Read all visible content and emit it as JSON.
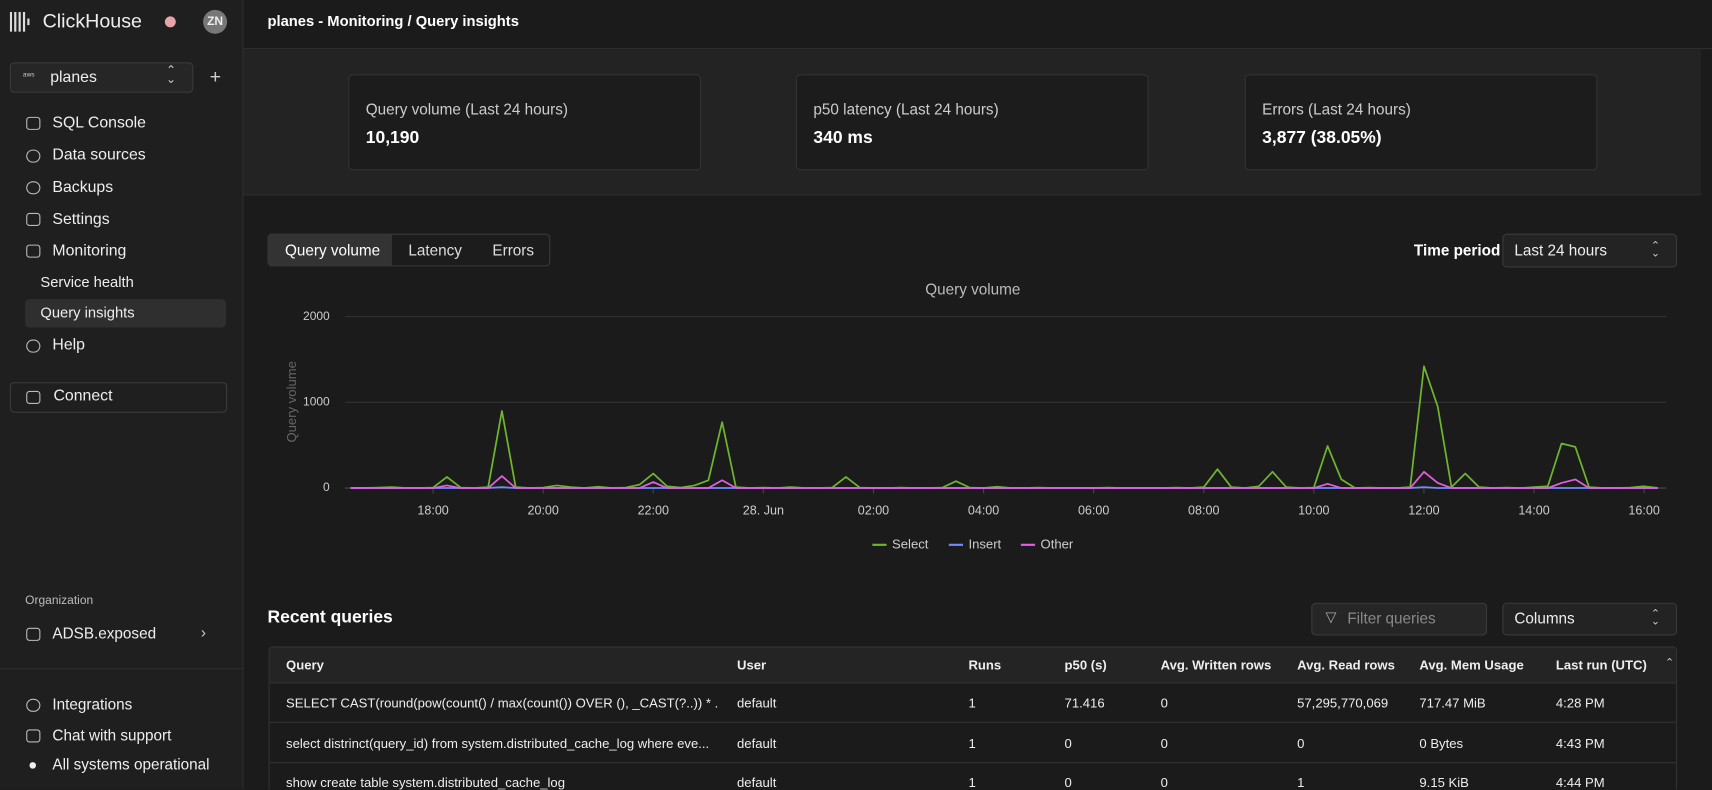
{
  "sidebar": {
    "brand": "ClickHouse",
    "avatar": "ZN",
    "service": "planes",
    "nav": [
      "SQL Console",
      "Data sources",
      "Backups",
      "Settings",
      "Monitoring"
    ],
    "subnav": [
      "Service health",
      "Query insights"
    ],
    "help": "Help",
    "connect": "Connect",
    "org_label": "Organization",
    "org": "ADSB.exposed",
    "footer": [
      "Integrations",
      "Chat with support",
      "All systems operational"
    ]
  },
  "header": {
    "title": "planes - Monitoring / Query insights"
  },
  "stats": [
    {
      "label": "Query volume (Last 24 hours)",
      "value": "10,190"
    },
    {
      "label": "p50 latency (Last 24 hours)",
      "value": "340 ms"
    },
    {
      "label": "Errors (Last 24 hours)",
      "value": "3,877 (38.05%)"
    }
  ],
  "tabs": [
    "Query volume",
    "Latency",
    "Errors"
  ],
  "time_period": {
    "label": "Time period",
    "value": "Last 24 hours"
  },
  "chart_data": {
    "type": "line",
    "title": "Query volume",
    "y_label": "Query volume",
    "x": [
      16.5,
      16.75,
      17,
      17.25,
      17.5,
      17.75,
      18,
      18.25,
      18.5,
      18.75,
      19,
      19.25,
      19.5,
      19.75,
      20,
      20.25,
      20.5,
      20.75,
      21,
      21.25,
      21.5,
      21.75,
      22,
      22.25,
      22.5,
      22.75,
      23,
      23.25,
      23.5,
      23.75,
      24,
      24.25,
      24.5,
      24.75,
      25,
      25.25,
      25.5,
      25.75,
      26,
      26.25,
      26.5,
      26.75,
      27,
      27.25,
      27.5,
      27.75,
      28,
      28.25,
      28.5,
      28.75,
      29,
      29.25,
      29.5,
      29.75,
      30,
      30.25,
      30.5,
      30.75,
      31,
      31.25,
      31.5,
      31.75,
      32,
      32.25,
      32.5,
      32.75,
      33,
      33.25,
      33.5,
      33.75,
      34,
      34.25,
      34.5,
      34.75,
      35,
      35.25,
      35.5,
      35.75,
      36,
      36.25,
      36.5,
      36.75,
      37,
      37.25,
      37.5,
      37.75,
      38,
      38.25,
      38.5,
      38.75,
      39,
      39.25,
      39.5,
      39.75,
      40,
      40.25
    ],
    "series": [
      {
        "name": "Select",
        "color": "#6cb52d",
        "values": [
          0,
          0,
          5,
          10,
          0,
          0,
          5,
          130,
          5,
          0,
          10,
          900,
          10,
          0,
          5,
          30,
          10,
          0,
          15,
          0,
          5,
          40,
          170,
          20,
          5,
          30,
          90,
          770,
          10,
          0,
          5,
          0,
          10,
          0,
          0,
          5,
          130,
          5,
          0,
          0,
          5,
          0,
          0,
          5,
          80,
          5,
          0,
          15,
          0,
          0,
          5,
          0,
          0,
          0,
          0,
          5,
          0,
          0,
          0,
          0,
          5,
          0,
          10,
          220,
          10,
          0,
          20,
          190,
          10,
          0,
          5,
          490,
          100,
          0,
          5,
          0,
          0,
          10,
          1420,
          950,
          10,
          170,
          10,
          0,
          5,
          0,
          10,
          20,
          520,
          480,
          10,
          0,
          0,
          5,
          20,
          0
        ]
      },
      {
        "name": "Insert",
        "color": "#6f8cff",
        "values": [
          0,
          0,
          0,
          0,
          0,
          0,
          0,
          0,
          0,
          0,
          0,
          10,
          0,
          0,
          0,
          0,
          0,
          0,
          0,
          0,
          0,
          0,
          0,
          0,
          0,
          0,
          0,
          0,
          0,
          0,
          0,
          0,
          0,
          0,
          0,
          0,
          0,
          0,
          0,
          0,
          0,
          0,
          0,
          0,
          0,
          0,
          0,
          0,
          0,
          0,
          0,
          0,
          0,
          0,
          0,
          0,
          0,
          0,
          0,
          0,
          0,
          0,
          0,
          0,
          0,
          0,
          0,
          0,
          0,
          0,
          0,
          0,
          0,
          0,
          0,
          0,
          0,
          0,
          10,
          0,
          0,
          0,
          0,
          0,
          0,
          0,
          0,
          0,
          0,
          0,
          0,
          0,
          0,
          0,
          0,
          0
        ]
      },
      {
        "name": "Other",
        "color": "#e45ce4",
        "values": [
          0,
          0,
          0,
          0,
          0,
          0,
          0,
          30,
          0,
          0,
          0,
          140,
          0,
          0,
          0,
          0,
          0,
          0,
          0,
          0,
          0,
          0,
          70,
          0,
          0,
          0,
          0,
          90,
          0,
          0,
          0,
          0,
          0,
          0,
          0,
          0,
          0,
          0,
          0,
          0,
          0,
          0,
          0,
          0,
          0,
          0,
          0,
          0,
          0,
          0,
          0,
          0,
          0,
          0,
          0,
          0,
          0,
          0,
          0,
          0,
          0,
          0,
          0,
          0,
          0,
          0,
          0,
          0,
          0,
          0,
          0,
          50,
          0,
          0,
          0,
          0,
          0,
          0,
          190,
          60,
          0,
          0,
          0,
          0,
          0,
          0,
          0,
          0,
          60,
          100,
          0,
          0,
          0,
          0,
          0,
          0
        ]
      }
    ],
    "xlim": [
      16.4,
      40.4
    ],
    "xticks": [
      {
        "value": 18,
        "label": "18:00"
      },
      {
        "value": 20,
        "label": "20:00"
      },
      {
        "value": 22,
        "label": "22:00"
      },
      {
        "value": 24,
        "label": "28. Jun"
      },
      {
        "value": 26,
        "label": "02:00"
      },
      {
        "value": 28,
        "label": "04:00"
      },
      {
        "value": 30,
        "label": "06:00"
      },
      {
        "value": 32,
        "label": "08:00"
      },
      {
        "value": 34,
        "label": "10:00"
      },
      {
        "value": 36,
        "label": "12:00"
      },
      {
        "value": 38,
        "label": "14:00"
      },
      {
        "value": 40,
        "label": "16:00"
      }
    ],
    "ylim": [
      0,
      2000
    ],
    "yticks": [
      0,
      1000,
      2000
    ],
    "grid": true,
    "legend": "bottom"
  },
  "recent": {
    "title": "Recent queries",
    "filter_placeholder": "Filter queries",
    "columns_button": "Columns"
  },
  "table": {
    "columns": [
      "Query",
      "User",
      "Runs",
      "p50 (s)",
      "Avg. Written rows",
      "Avg. Read rows",
      "Avg. Mem Usage",
      "Last run (UTC)"
    ],
    "rows": [
      [
        "SELECT CAST(round(pow(count() / max(count()) OVER (), _CAST(?..)) * ...",
        "default",
        "1",
        "71.416",
        "0",
        "57,295,770,069",
        "717.47 MiB",
        "4:28 PM"
      ],
      [
        "select distrinct(query_id) from system.distributed_cache_log where eve...",
        "default",
        "1",
        "0",
        "0",
        "0",
        "0 Bytes",
        "4:43 PM"
      ],
      [
        "show create table system.distributed_cache_log",
        "default",
        "1",
        "0",
        "0",
        "1",
        "9.15 KiB",
        "4:44 PM"
      ]
    ]
  }
}
